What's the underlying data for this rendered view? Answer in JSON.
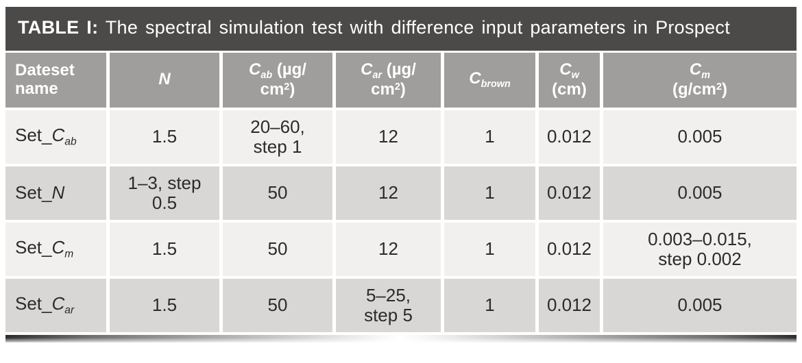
{
  "title": {
    "label": "TABLE I:",
    "text": "The spectral simulation test with difference input parameters in Prospect"
  },
  "colors": {
    "title_bg": "#4c4a48",
    "header_bg": "#9f9e9c",
    "header_text": "#ffffff",
    "row_light": "#f1f0ee",
    "row_dark": "#d9d7d5",
    "text": "#2b2b2b"
  },
  "table": {
    "columns": [
      {
        "name": "dataset-name",
        "align": "left",
        "header": [
          {
            "t": "Dateset"
          },
          {
            "br": true
          },
          {
            "t": "name"
          }
        ]
      },
      {
        "name": "n",
        "header": [
          {
            "t": "N",
            "i": true
          }
        ]
      },
      {
        "name": "cab",
        "header": [
          {
            "t": "C",
            "i": true
          },
          {
            "t": "ab",
            "sub": true,
            "i": true
          },
          {
            "t": " (µg/"
          },
          {
            "br": true
          },
          {
            "t": "cm"
          },
          {
            "t": "2",
            "sup": true
          },
          {
            "t": ")"
          }
        ]
      },
      {
        "name": "car",
        "header": [
          {
            "t": "C",
            "i": true
          },
          {
            "t": "ar",
            "sub": true,
            "i": true
          },
          {
            "t": " (µg/"
          },
          {
            "br": true
          },
          {
            "t": "cm"
          },
          {
            "t": "2",
            "sup": true
          },
          {
            "t": ")"
          }
        ]
      },
      {
        "name": "cbrown",
        "header": [
          {
            "t": "C",
            "i": true
          },
          {
            "t": "brown",
            "sub": true,
            "i": true
          }
        ]
      },
      {
        "name": "cw",
        "header": [
          {
            "t": "C",
            "i": true
          },
          {
            "t": "w",
            "sub": true,
            "i": true
          },
          {
            "br": true
          },
          {
            "t": "(cm)"
          }
        ]
      },
      {
        "name": "cm",
        "header": [
          {
            "t": "C",
            "i": true
          },
          {
            "t": "m",
            "sub": true,
            "i": true
          },
          {
            "br": true
          },
          {
            "t": "(g/cm"
          },
          {
            "t": "2",
            "sup": true
          },
          {
            "t": ")"
          }
        ]
      }
    ],
    "rows": [
      {
        "cells": [
          [
            {
              "t": "Set_"
            },
            {
              "t": "C",
              "i": true
            },
            {
              "t": "ab",
              "sub": true,
              "i": true
            }
          ],
          "1.5",
          [
            {
              "t": "20–60,"
            },
            {
              "br": true
            },
            {
              "t": "step 1"
            }
          ],
          "12",
          "1",
          "0.012",
          "0.005"
        ]
      },
      {
        "cells": [
          [
            {
              "t": "Set_"
            },
            {
              "t": "N",
              "i": true
            }
          ],
          [
            {
              "t": "1–3, step"
            },
            {
              "br": true
            },
            {
              "t": "0.5"
            }
          ],
          "50",
          "12",
          "1",
          "0.012",
          "0.005"
        ]
      },
      {
        "cells": [
          [
            {
              "t": "Set_"
            },
            {
              "t": "C",
              "i": true
            },
            {
              "t": "m",
              "sub": true,
              "i": true
            }
          ],
          "1.5",
          "50",
          "12",
          "1",
          "0.012",
          [
            {
              "t": "0.003–0.015,"
            },
            {
              "br": true
            },
            {
              "t": "step 0.002"
            }
          ]
        ]
      },
      {
        "cells": [
          [
            {
              "t": "Set_"
            },
            {
              "t": "C",
              "i": true
            },
            {
              "t": "ar",
              "sub": true,
              "i": true
            }
          ],
          "1.5",
          "50",
          [
            {
              "t": "5–25,"
            },
            {
              "br": true
            },
            {
              "t": "step 5"
            }
          ],
          "1",
          "0.012",
          "0.005"
        ]
      }
    ]
  }
}
